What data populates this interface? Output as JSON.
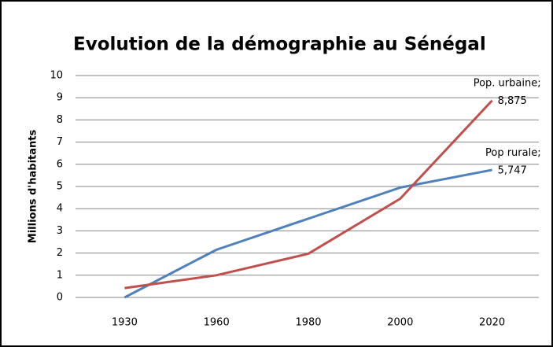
{
  "chart_data": {
    "type": "line",
    "title": "Evolution de la démographie au Sénégal",
    "y_label": "Millions d'habitants",
    "categories": [
      "1930",
      "1960",
      "1980",
      "2000",
      "2020"
    ],
    "label_separator": ";",
    "series": [
      {
        "name": "Pop rurale",
        "color": "#4f81bd",
        "values": [
          0.0,
          2.15,
          3.55,
          4.95,
          5.747
        ],
        "value_labels": [
          null,
          null,
          null,
          null,
          "5,747"
        ]
      },
      {
        "name": "Pop. urbaine",
        "color": "#c0504d",
        "values": [
          0.42,
          1.0,
          1.97,
          4.45,
          8.875
        ],
        "value_labels": [
          null,
          null,
          null,
          null,
          "8,875"
        ]
      }
    ],
    "ylim": [
      0,
      10
    ],
    "yticks": [
      0,
      1,
      2,
      3,
      4,
      5,
      6,
      7,
      8,
      9,
      10
    ],
    "grid": true
  }
}
